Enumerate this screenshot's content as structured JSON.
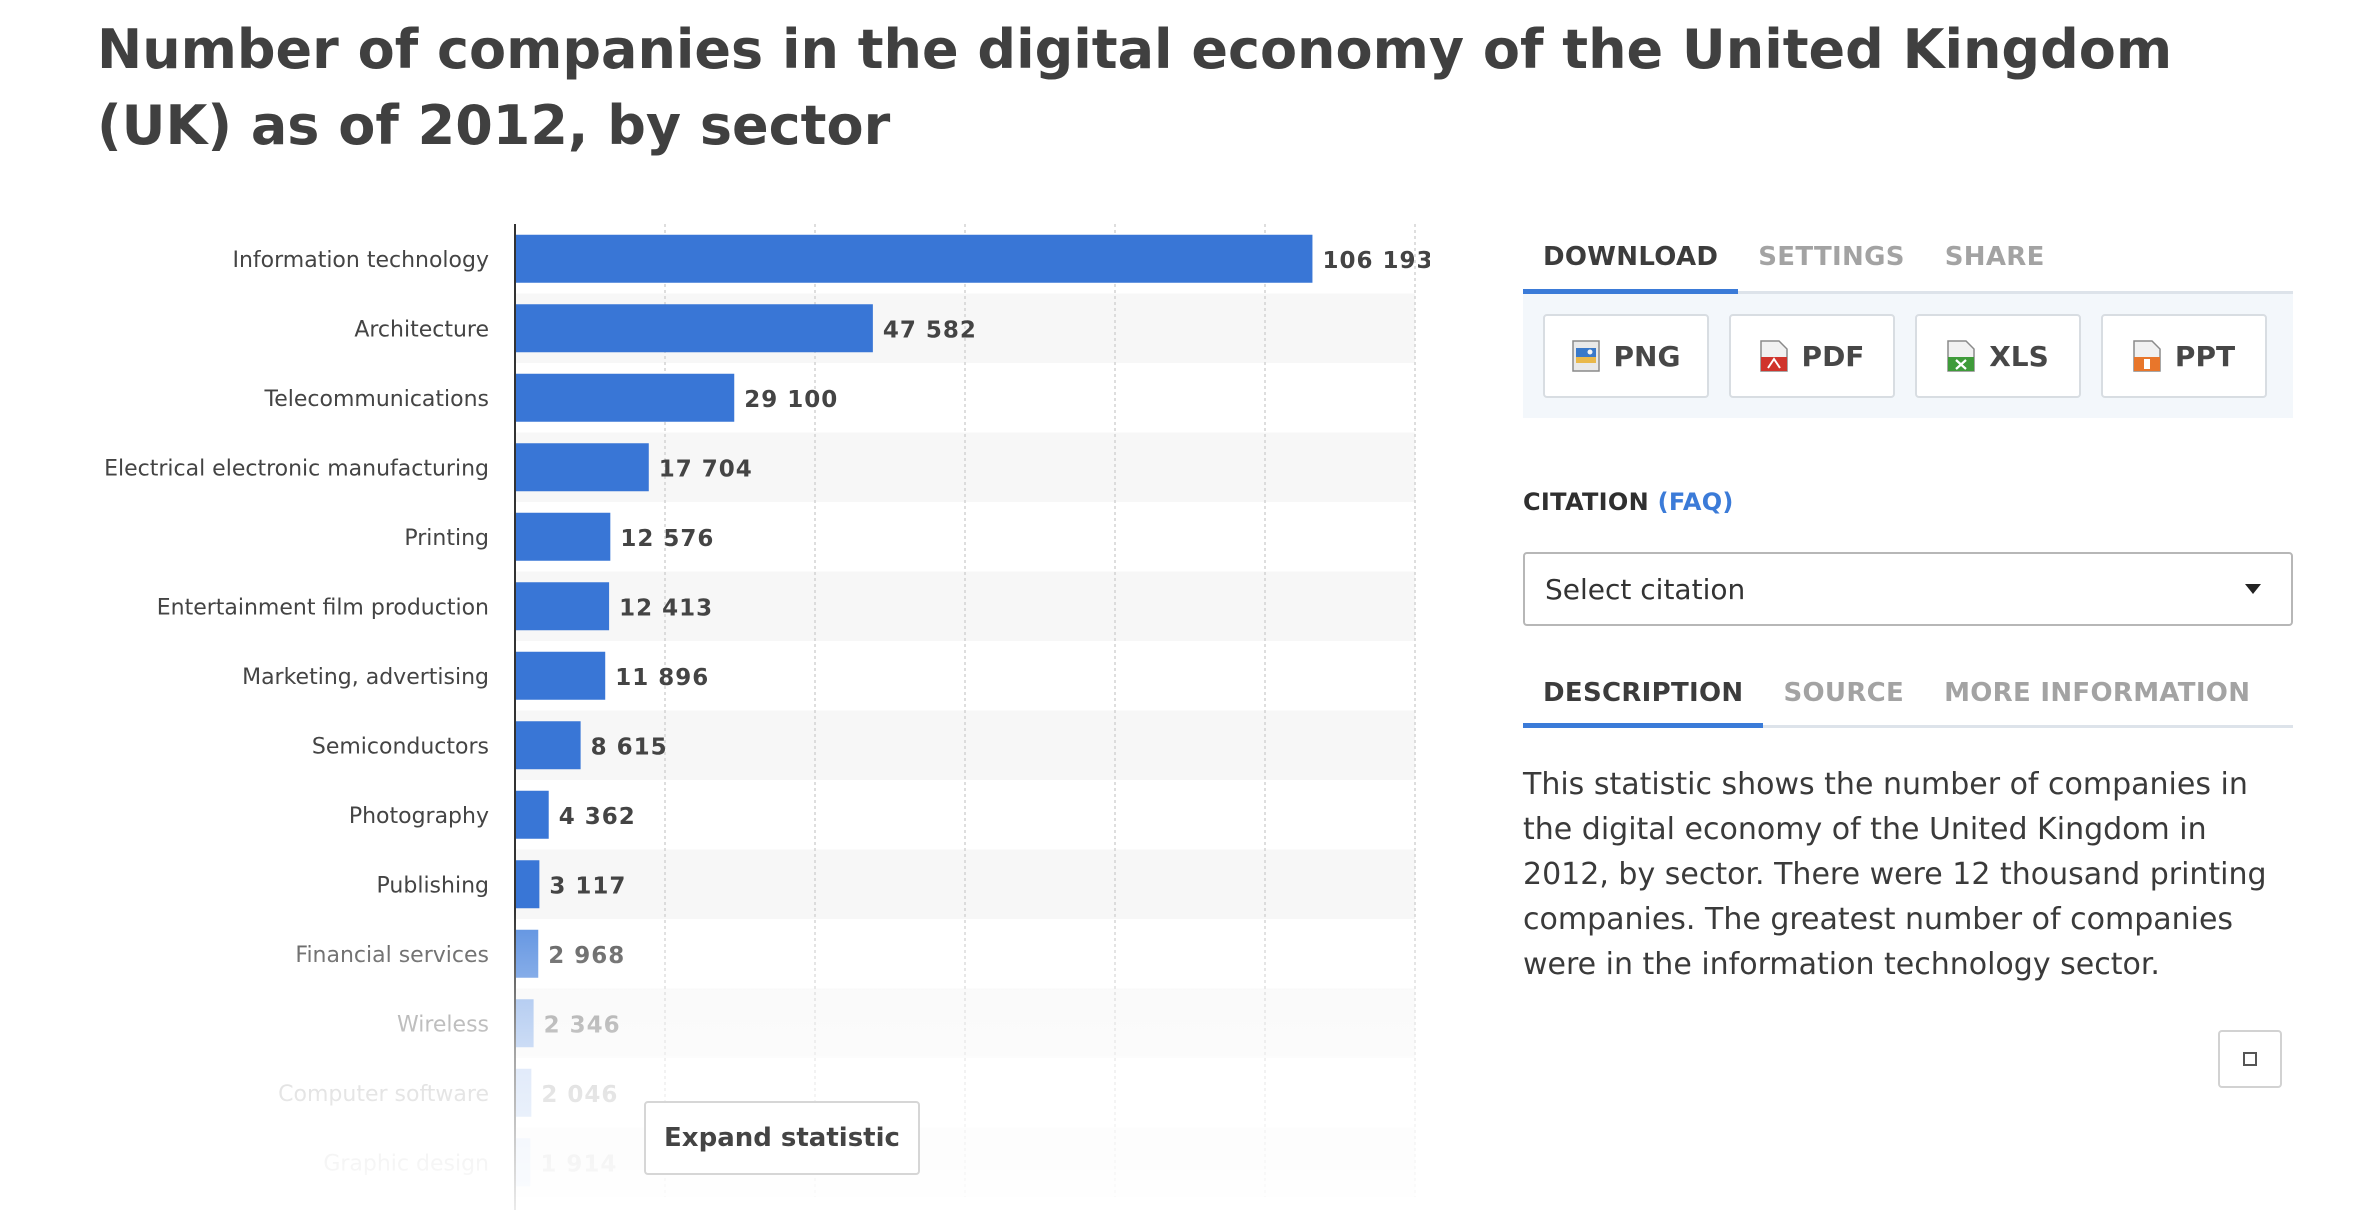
{
  "page": {
    "title": "Number of companies in the digital economy of the United Kingdom (UK) as of 2012, by sector"
  },
  "chart_data": {
    "type": "bar",
    "orientation": "horizontal",
    "categories": [
      "Information technology",
      "Architecture",
      "Telecommunications",
      "Electrical electronic manufacturing",
      "Printing",
      "Entertainment film production",
      "Marketing, advertising",
      "Semiconductors",
      "Photography",
      "Publishing",
      "Financial services",
      "Wireless",
      "Computer software",
      "Graphic design"
    ],
    "values": [
      106193,
      47582,
      29100,
      17704,
      12576,
      12413,
      11896,
      8615,
      4362,
      3117,
      2968,
      2346,
      2046,
      1914
    ],
    "value_labels": [
      "106 193",
      "47 582",
      "29 100",
      "17 704",
      "12 576",
      "12 413",
      "11 896",
      "8 615",
      "4 362",
      "3 117",
      "2 968",
      "2 346",
      "2 046",
      "1 914"
    ],
    "xlim": [
      0,
      120000
    ],
    "grid": true,
    "bar_color": "#3976d6"
  },
  "chart": {
    "expand_label": "Expand statistic"
  },
  "download": {
    "tabs": [
      "DOWNLOAD",
      "SETTINGS",
      "SHARE"
    ],
    "active_tab": "DOWNLOAD",
    "buttons": [
      {
        "label": "PNG",
        "icon": "png-file-icon"
      },
      {
        "label": "PDF",
        "icon": "pdf-file-icon"
      },
      {
        "label": "XLS",
        "icon": "xls-file-icon"
      },
      {
        "label": "PPT",
        "icon": "ppt-file-icon"
      }
    ]
  },
  "citation": {
    "heading": "CITATION",
    "faq": "(FAQ)",
    "select_placeholder": "Select citation"
  },
  "info": {
    "tabs": [
      "DESCRIPTION",
      "SOURCE",
      "MORE INFORMATION"
    ],
    "active_tab": "DESCRIPTION",
    "description": "This statistic shows the number of companies in the digital economy of the United Kingdom in 2012, by sector. There were 12 thousand printing companies. The greatest number of companies were in the information technology sector."
  },
  "colors": {
    "accent": "#3b7bd8",
    "title": "#404040",
    "stripe": "#f7f7f7"
  }
}
